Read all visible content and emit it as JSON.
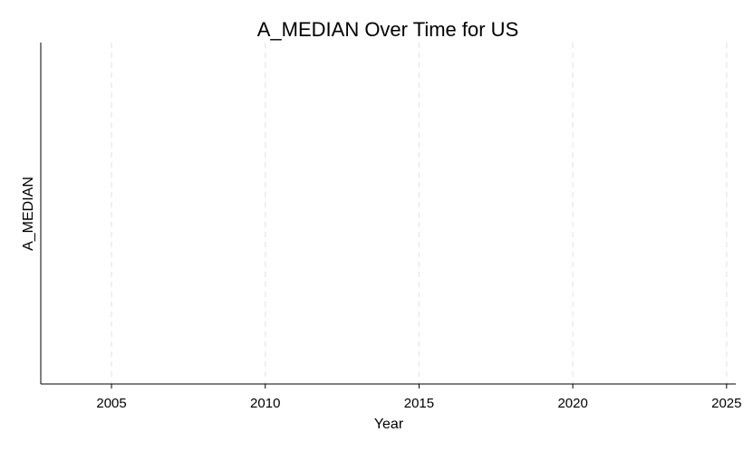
{
  "chart_data": {
    "type": "line",
    "title": "A_MEDIAN Over Time for US",
    "xlabel": "Year",
    "ylabel": "A_MEDIAN",
    "x_ticks": [
      2005,
      2010,
      2015,
      2020,
      2025
    ],
    "x_tick_labels": [
      "2005",
      "2010",
      "2015",
      "2020",
      "2025"
    ],
    "xlim": [
      2002.7,
      2025.3
    ],
    "y_ticks": [],
    "series": [],
    "grid": "vertical dashed",
    "legend": "none"
  }
}
